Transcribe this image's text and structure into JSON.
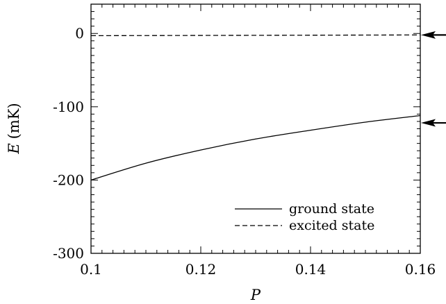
{
  "chart_data": {
    "type": "line",
    "xlabel": "P",
    "ylabel_symbol": "E",
    "ylabel_unit": "(mK)",
    "xlim": [
      0.1,
      0.16
    ],
    "ylim": [
      -300,
      40
    ],
    "x_ticks": [
      0.1,
      0.12,
      0.14,
      0.16
    ],
    "x_tick_labels": [
      "0.1",
      "0.12",
      "0.14",
      "0.16"
    ],
    "y_ticks": [
      0,
      -100,
      -200,
      -300
    ],
    "y_tick_labels": [
      "0",
      "-100",
      "-200",
      "-300"
    ],
    "grid": false,
    "legend_position": "bottom-right",
    "series": [
      {
        "name": "ground state",
        "style": "solid",
        "color": "#000000",
        "x": [
          0.1,
          0.11,
          0.12,
          0.13,
          0.14,
          0.15,
          0.16
        ],
        "y": [
          -200,
          -177,
          -159,
          -144,
          -132,
          -121,
          -112
        ]
      },
      {
        "name": "excited state",
        "style": "dashed",
        "color": "#000000",
        "x": [
          0.1,
          0.16
        ],
        "y": [
          -3,
          -2
        ]
      }
    ],
    "annotations": [
      {
        "type": "arrow",
        "y": -2
      },
      {
        "type": "arrow",
        "y": -122
      }
    ]
  }
}
